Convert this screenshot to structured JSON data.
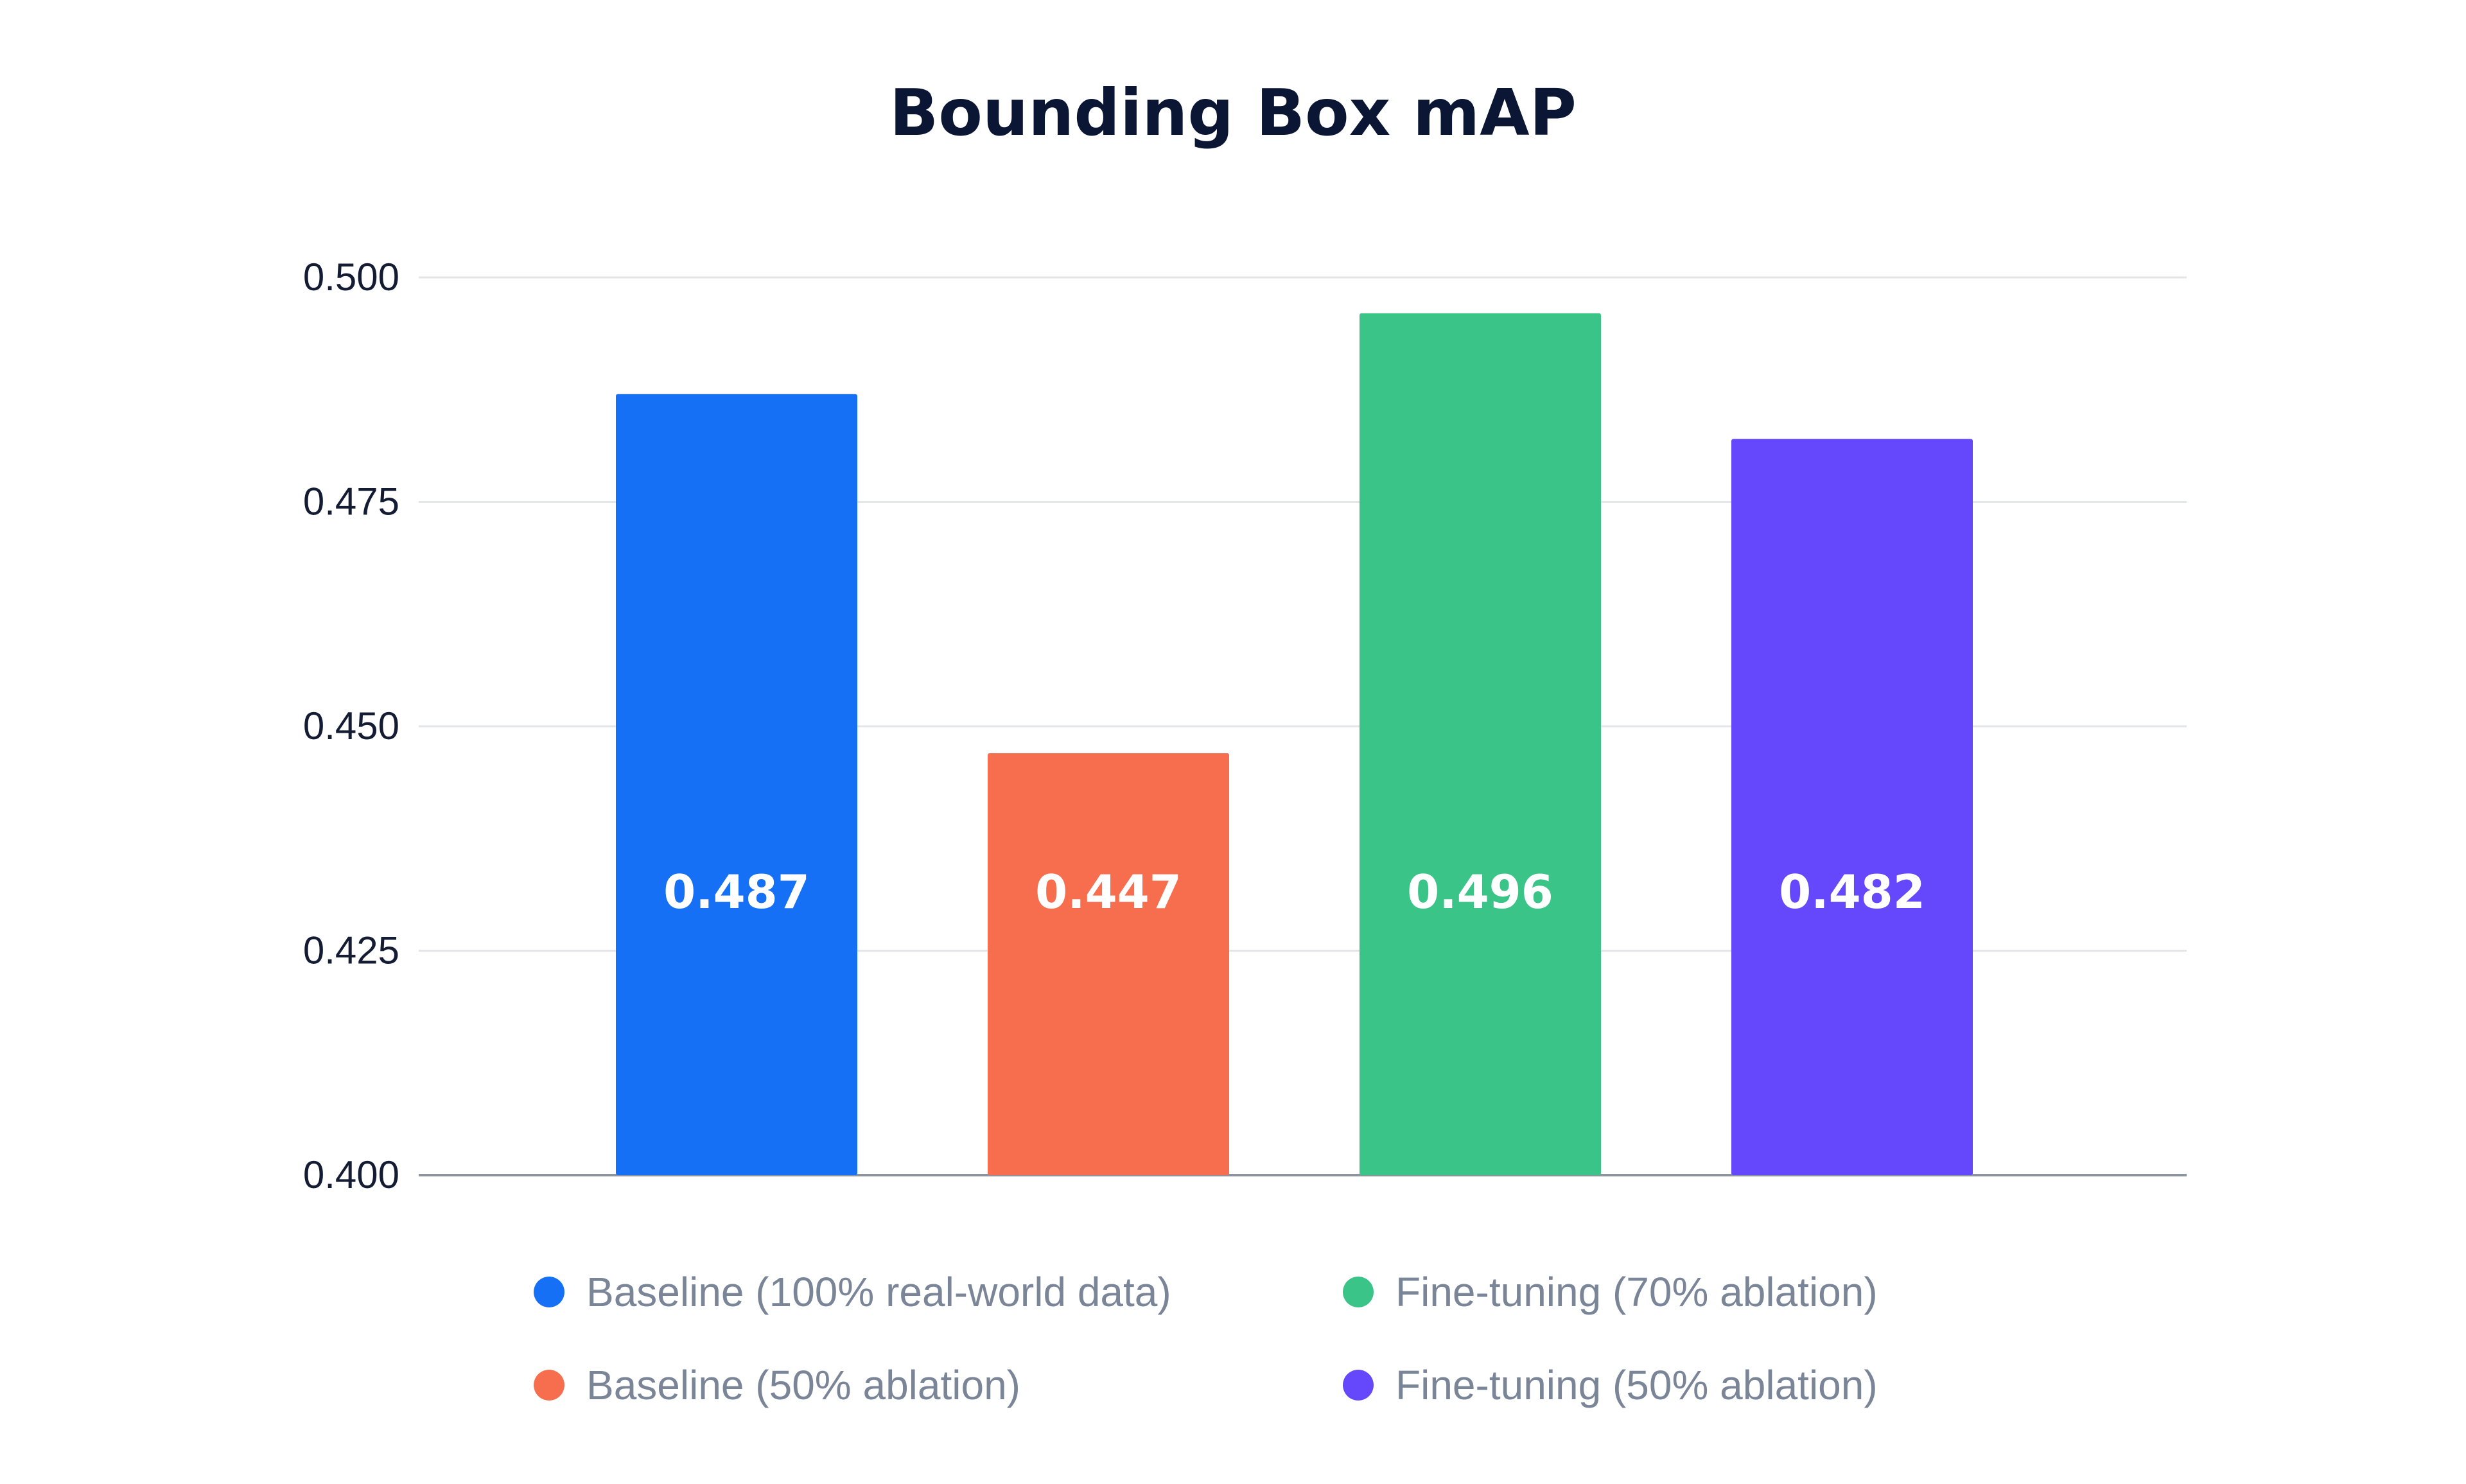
{
  "chart_data": {
    "type": "bar",
    "title": "Bounding Box mAP",
    "xlabel": "",
    "ylabel": "",
    "ylim": [
      0.4,
      0.5
    ],
    "grid": true,
    "legend_position": "bottom",
    "y_ticks": [
      "0.400",
      "0.425",
      "0.450",
      "0.475",
      "0.500"
    ],
    "categories": [
      "Baseline (100% real-world data)",
      "Baseline (50% ablation)",
      "Fine-tuning (70% ablation)",
      "Fine-tuning (50% ablation)"
    ],
    "values": [
      0.487,
      0.447,
      0.496,
      0.482
    ],
    "value_labels": [
      "0.487",
      "0.447",
      "0.496",
      "0.482"
    ],
    "colors": [
      "#1570f6",
      "#f66e4e",
      "#3ac487",
      "#6548fb"
    ],
    "legend": [
      {
        "label": "Baseline (100% real-world data)",
        "color": "#1570f6"
      },
      {
        "label": "Fine-tuning (70% ablation)",
        "color": "#3ac487"
      },
      {
        "label": "Baseline (50% ablation)",
        "color": "#f66e4e"
      },
      {
        "label": "Fine-tuning (50% ablation)",
        "color": "#6548fb"
      }
    ]
  }
}
